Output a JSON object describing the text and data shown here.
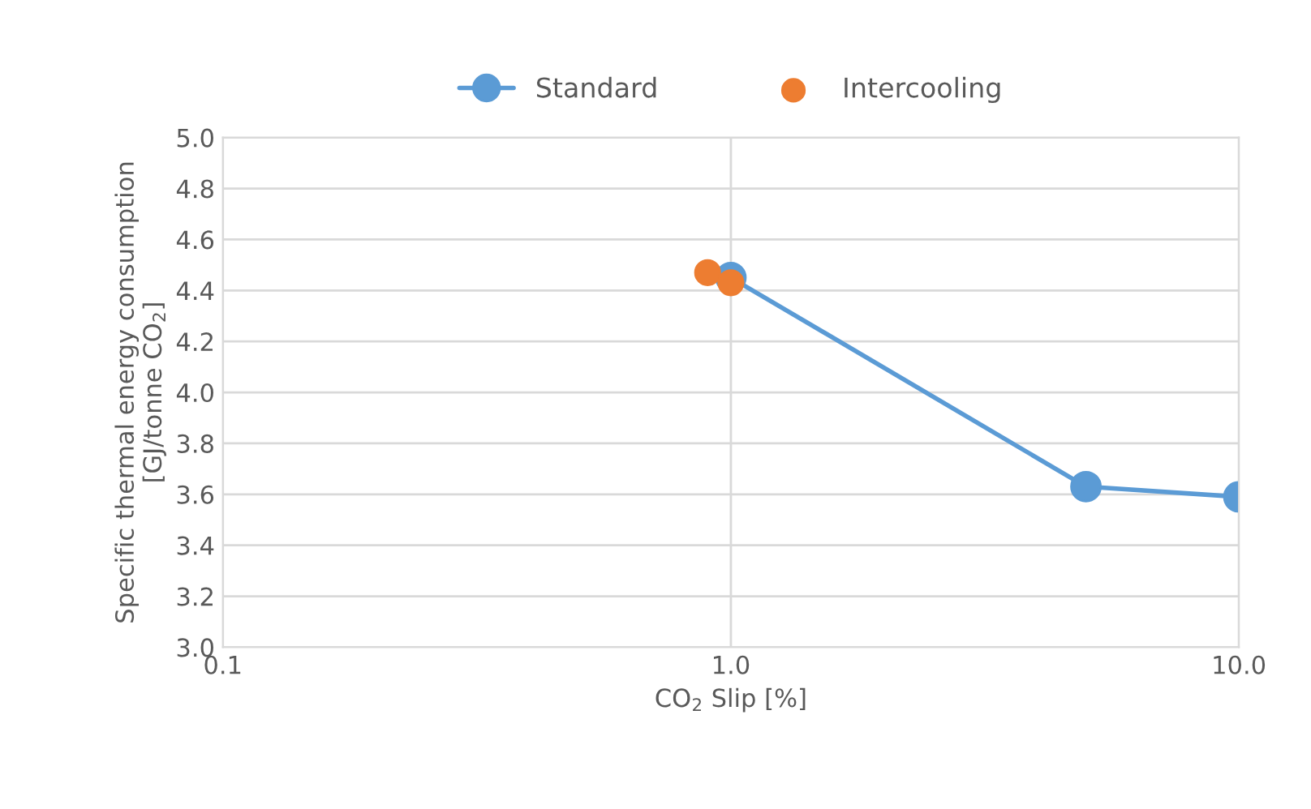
{
  "chart_data": {
    "type": "line",
    "xlabel": "CO$_{2}$ Slip [%]",
    "ylabel": "Specific thermal energy consumption\n[GJ/tonne CO$_{2}$]",
    "log": "x",
    "xlim": [
      0.1,
      10
    ],
    "xticks": [
      {
        "value": 0.1,
        "label": "0.1"
      },
      {
        "value": 1,
        "label": "1.0"
      },
      {
        "value": 10,
        "label": "10.0"
      }
    ],
    "ylim": [
      3.0,
      5.0
    ],
    "yticks": [
      {
        "value": 3.0,
        "label": "3.0"
      },
      {
        "value": 3.2,
        "label": "3.2"
      },
      {
        "value": 3.4,
        "label": "3.4"
      },
      {
        "value": 3.6,
        "label": "3.6"
      },
      {
        "value": 3.8,
        "label": "3.8"
      },
      {
        "value": 4.0,
        "label": "4.0"
      },
      {
        "value": 4.2,
        "label": "4.2"
      },
      {
        "value": 4.4,
        "label": "4.4"
      },
      {
        "value": 4.6,
        "label": "4.6"
      },
      {
        "value": 4.8,
        "label": "4.8"
      },
      {
        "value": 5.0,
        "label": "5.0"
      }
    ],
    "grid": true,
    "legend": "top",
    "marker": "circle",
    "series": [
      {
        "name": "Standard",
        "color": "#5b9bd5",
        "x": [
          1.0,
          5.0,
          10.0
        ],
        "values": [
          4.45,
          3.63,
          3.59
        ]
      },
      {
        "name": "Intercooling",
        "type": "scatter",
        "color": "#ed7d31",
        "x": [
          0.9,
          1.0
        ],
        "values": [
          4.47,
          4.43
        ]
      }
    ]
  }
}
